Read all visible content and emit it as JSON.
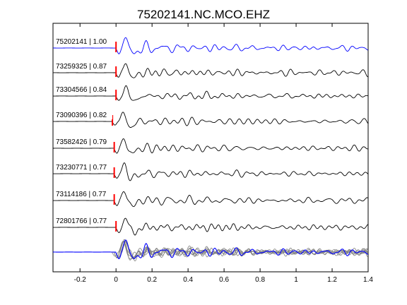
{
  "chart_data": {
    "type": "line",
    "title": "75202141.NC.MCO.EHZ",
    "xlabel": "",
    "ylabel": "",
    "xlim": [
      -0.35,
      1.4
    ],
    "x_ticks": [
      "-0.2",
      "0",
      "0.2",
      "0.4",
      "0.6",
      "0.8",
      "1",
      "1.2",
      "1.4"
    ],
    "x_tick_values": [
      -0.2,
      0,
      0.2,
      0.4,
      0.6,
      0.8,
      1.0,
      1.2,
      1.4
    ],
    "grid": false,
    "legend": "none",
    "trace_color_master": "#0000ff",
    "trace_color_other": "#000000",
    "pick_color": "#ff0000",
    "stack_color": "#808080",
    "series": [
      {
        "id": "75202141",
        "cc": "1.00",
        "label": "75202141 | 1.00",
        "pick_time": 0.0,
        "master": true
      },
      {
        "id": "73259325",
        "cc": "0.87",
        "label": "73259325 | 0.87",
        "pick_time": 0.0,
        "master": false
      },
      {
        "id": "73304566",
        "cc": "0.84",
        "label": "73304566 | 0.84",
        "pick_time": 0.0,
        "master": false
      },
      {
        "id": "73090396",
        "cc": "0.82",
        "label": "73090396 | 0.82",
        "pick_time": -0.02,
        "master": false
      },
      {
        "id": "73582426",
        "cc": "0.79",
        "label": "73582426 | 0.79",
        "pick_time": -0.01,
        "master": false
      },
      {
        "id": "73230771",
        "cc": "0.77",
        "label": "73230771 | 0.77",
        "pick_time": -0.01,
        "master": false
      },
      {
        "id": "73114186",
        "cc": "0.77",
        "label": "73114186 | 0.77",
        "pick_time": -0.01,
        "master": false
      },
      {
        "id": "72801766",
        "cc": "0.77",
        "label": "72801766 | 0.77",
        "pick_time": 0.0,
        "master": false
      }
    ],
    "stacked_overlay": true
  }
}
